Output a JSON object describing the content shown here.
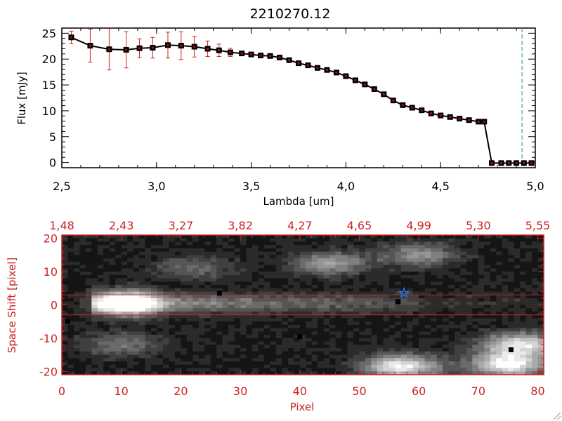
{
  "chart_data": [
    {
      "type": "line",
      "title": "2210270.12",
      "xlabel": "Lambda [um]",
      "ylabel": "Flux [mJy]",
      "xlim": [
        2.5,
        5.0
      ],
      "ylim": [
        -1,
        26
      ],
      "xticks": [
        "2.5",
        "3.0",
        "3.5",
        "4.0",
        "4.5",
        "5.0"
      ],
      "yticks": [
        "0",
        "5",
        "10",
        "15",
        "20",
        "25"
      ],
      "grid": false,
      "line_color": "#000000",
      "marker_color": "#000000",
      "error_color": "#cc2222",
      "marker_fill_color": "#aa1111",
      "dashed_line_color": "#229988",
      "dashed_line_x": 4.93,
      "series": [
        {
          "x": [
            2.55,
            2.65,
            2.75,
            2.84,
            2.91,
            2.98,
            3.06,
            3.13,
            3.2,
            3.27,
            3.33,
            3.39,
            3.45,
            3.5,
            3.55,
            3.6,
            3.65,
            3.7,
            3.75,
            3.8,
            3.85,
            3.9,
            3.95,
            4.0,
            4.05,
            4.1,
            4.15,
            4.2,
            4.25,
            4.3,
            4.35,
            4.4,
            4.45,
            4.5,
            4.55,
            4.6,
            4.65,
            4.7,
            4.73,
            4.77,
            4.82,
            4.86,
            4.9,
            4.94,
            4.98
          ],
          "y": [
            24.2,
            22.6,
            21.9,
            21.8,
            22.1,
            22.2,
            22.7,
            22.6,
            22.4,
            22.0,
            21.7,
            21.3,
            21.1,
            20.9,
            20.7,
            20.6,
            20.3,
            19.8,
            19.2,
            18.8,
            18.3,
            17.9,
            17.4,
            16.7,
            15.9,
            15.1,
            14.2,
            13.2,
            12.0,
            11.1,
            10.6,
            10.1,
            9.5,
            9.1,
            8.8,
            8.5,
            8.2,
            7.9,
            7.9,
            -0.1,
            -0.1,
            -0.1,
            -0.1,
            -0.1,
            -0.1
          ],
          "yerr": [
            1.2,
            3.2,
            4.0,
            3.5,
            1.8,
            2.0,
            2.5,
            2.7,
            2.0,
            1.5,
            1.2,
            0.8,
            0.4,
            0.3,
            0.3,
            0.3,
            0.3,
            0.3,
            0.3,
            0.3,
            0.3,
            0.3,
            0.3,
            0.3,
            0.3,
            0.3,
            0.3,
            0.3,
            0.3,
            0.3,
            0.3,
            0.3,
            0.3,
            0.3,
            0.3,
            0.3,
            0.3,
            0.3,
            0.3,
            0.2,
            0.2,
            0.2,
            0.2,
            0.2,
            0.2
          ]
        }
      ]
    },
    {
      "type": "heatmap",
      "xlabel": "Pixel",
      "ylabel": "Space Shift [pixel]",
      "xlim": [
        0,
        81
      ],
      "ylim": [
        -21,
        21
      ],
      "xticks": [
        "0",
        "10",
        "20",
        "30",
        "40",
        "50",
        "60",
        "70",
        "80"
      ],
      "yticks": [
        "-20",
        "-10",
        "0",
        "10",
        "20"
      ],
      "top_ticks": [
        "1.48",
        "2.43",
        "3.27",
        "3.82",
        "4.27",
        "4.65",
        "4.99",
        "5.30",
        "5.55"
      ],
      "axis_color": "#cc2222",
      "colormap": "grayscale",
      "band_y": [
        -3,
        3
      ],
      "trace_y": 0.5,
      "features": [
        {
          "kind": "source",
          "x": 11,
          "y": 0.5,
          "peak": 1.0
        },
        {
          "kind": "blob",
          "x": 57,
          "y": -18.5,
          "peak": 0.85
        },
        {
          "kind": "blob",
          "x": 77,
          "y": -12,
          "peak": 0.8
        },
        {
          "kind": "blob",
          "x": 75,
          "y": -18,
          "peak": 0.9
        },
        {
          "kind": "blob",
          "x": 22,
          "y": 11,
          "peak": 0.3
        },
        {
          "kind": "blob",
          "x": 45,
          "y": 12.5,
          "peak": 0.5
        },
        {
          "kind": "blob",
          "x": 60,
          "y": 15,
          "peak": 0.45
        },
        {
          "kind": "blob",
          "x": 10,
          "y": -12,
          "peak": 0.35
        }
      ],
      "markers": [
        {
          "x": 26.5,
          "y": 3.5
        },
        {
          "x": 56.5,
          "y": 1
        },
        {
          "x": 75.5,
          "y": -13.5
        },
        {
          "x": 40,
          "y": -9.5
        },
        {
          "x": 1,
          "y": -5
        }
      ],
      "star": {
        "x": 57.5,
        "y": 3.5,
        "color": "#2277ee"
      }
    }
  ]
}
